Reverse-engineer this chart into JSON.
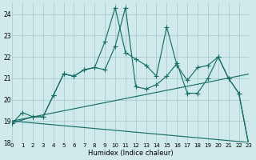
{
  "xlabel": "Humidex (Indice chaleur)",
  "bg_color": "#d0eaec",
  "grid_color": "#a8cdd0",
  "line_color": "#1a6e68",
  "xlim": [
    0,
    23
  ],
  "ylim": [
    18,
    24.5
  ],
  "yticks": [
    18,
    19,
    20,
    21,
    22,
    23,
    24
  ],
  "xticks": [
    0,
    1,
    2,
    3,
    4,
    5,
    6,
    7,
    8,
    9,
    10,
    11,
    12,
    13,
    14,
    15,
    16,
    17,
    18,
    19,
    20,
    21,
    22,
    23
  ],
  "line1_x": [
    0,
    1,
    2,
    3,
    4,
    5,
    6,
    7,
    8,
    9,
    10,
    11,
    12,
    13,
    14,
    15,
    16,
    17,
    18,
    19,
    20,
    21,
    22,
    23
  ],
  "line1_y": [
    18.9,
    19.4,
    19.2,
    19.2,
    20.2,
    21.2,
    21.1,
    21.4,
    21.5,
    22.7,
    24.3,
    22.2,
    21.9,
    21.6,
    21.1,
    23.4,
    21.6,
    20.9,
    21.5,
    21.6,
    22.0,
    21.0,
    20.3,
    17.8
  ],
  "line2_x": [
    0,
    2,
    3,
    4,
    5,
    6,
    7,
    8,
    9,
    10,
    11,
    12,
    13,
    14,
    15,
    16,
    17,
    18,
    19,
    20,
    21,
    22,
    23
  ],
  "line2_y": [
    18.9,
    19.2,
    19.2,
    20.2,
    21.2,
    21.1,
    21.4,
    21.5,
    21.4,
    22.5,
    24.3,
    20.6,
    20.5,
    20.7,
    21.1,
    21.7,
    20.3,
    20.3,
    21.0,
    22.0,
    21.0,
    20.3,
    17.8
  ],
  "trend1_x": [
    0,
    23
  ],
  "trend1_y": [
    19.0,
    21.2
  ],
  "trend2_x": [
    0,
    23
  ],
  "trend2_y": [
    19.0,
    18.0
  ]
}
